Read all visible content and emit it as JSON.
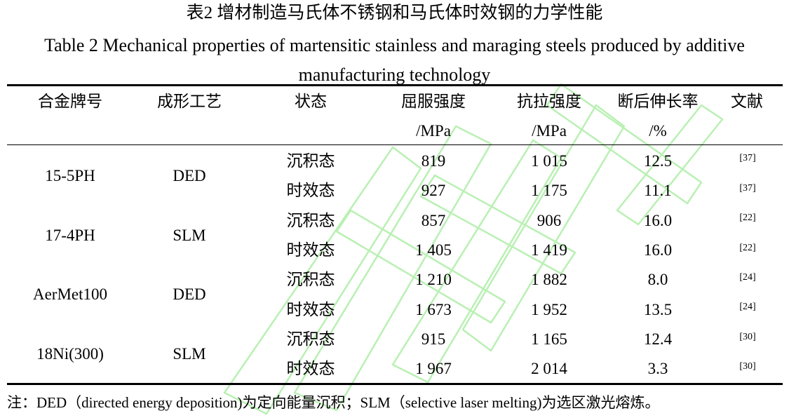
{
  "title_cn": "表2  增材制造马氏体不锈钢和马氏体时效钢的力学性能",
  "title_en": "Table 2 Mechanical properties of martensitic stainless and maraging steels produced by additive manufacturing technology",
  "headers": {
    "alloy": "合金牌号",
    "process": "成形工艺",
    "state": "状态",
    "yield": "屈服强度",
    "yield_unit": "/MPa",
    "tensile": "抗拉强度",
    "tensile_unit": "/MPa",
    "elongation": "断后伸长率",
    "elongation_unit": "/%",
    "ref": "文献"
  },
  "groups": [
    {
      "alloy": "15-5PH",
      "process": "DED"
    },
    {
      "alloy": "17-4PH",
      "process": "SLM"
    },
    {
      "alloy": "AerMet100",
      "process": "DED"
    },
    {
      "alloy": "18Ni(300)",
      "process": "SLM"
    }
  ],
  "rows": [
    {
      "state": "沉积态",
      "yield": "819",
      "tensile": "1 015",
      "elongation": "12.5",
      "ref": "[37]"
    },
    {
      "state": "时效态",
      "yield": "927",
      "tensile": "1 175",
      "elongation": "11.1",
      "ref": "[37]"
    },
    {
      "state": "沉积态",
      "yield": "857",
      "tensile": "906",
      "elongation": "16.0",
      "ref": "[22]"
    },
    {
      "state": "时效态",
      "yield": "1 405",
      "tensile": "1 419",
      "elongation": "16.0",
      "ref": "[22]"
    },
    {
      "state": "沉积态",
      "yield": "1 210",
      "tensile": "1 882",
      "elongation": "8.0",
      "ref": "[24]"
    },
    {
      "state": "时效态",
      "yield": "1 673",
      "tensile": "1 952",
      "elongation": "13.5",
      "ref": "[24]"
    },
    {
      "state": "沉积态",
      "yield": "915",
      "tensile": "1 165",
      "elongation": "12.4",
      "ref": "[30]"
    },
    {
      "state": "时效态",
      "yield": "1 967",
      "tensile": "2 014",
      "elongation": "3.3",
      "ref": "[30]"
    }
  ],
  "note": "注：DED（directed energy deposition)为定向能量沉积；SLM（selective laser melting)为选区激光熔炼。",
  "colors": {
    "watermark": "#b9f0b3"
  }
}
